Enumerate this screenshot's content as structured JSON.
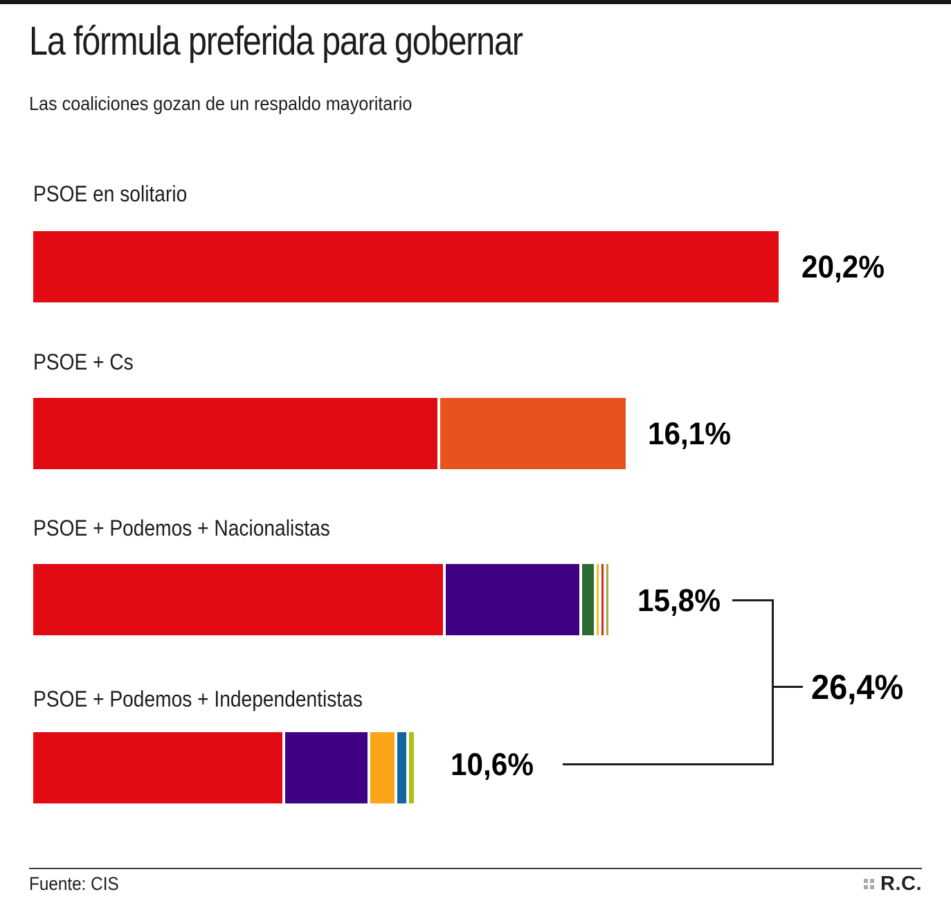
{
  "header": {
    "title": "La fórmula preferida para gobernar",
    "subtitle": "Las coaliciones gozan de un respaldo mayoritario"
  },
  "chart_data": {
    "type": "bar",
    "orientation": "horizontal",
    "unit": "%",
    "axis_max": 20.2,
    "grid": false,
    "legend": "none",
    "bars": [
      {
        "label": "PSOE en solitario",
        "total": 20.2,
        "total_label": "20,2%",
        "segments": [
          {
            "name": "PSOE",
            "value": 20.2,
            "color": "#e30b13"
          }
        ]
      },
      {
        "label": "PSOE + Cs",
        "total": 16.1,
        "total_label": "16,1%",
        "segments": [
          {
            "name": "PSOE",
            "value": 10.96,
            "color": "#e30b13"
          },
          {
            "name": "Cs",
            "value": 5.1,
            "color": "#e8521d"
          }
        ]
      },
      {
        "label": "PSOE + Podemos + Nacionalistas",
        "total": 15.8,
        "total_label": "15,8%",
        "segments": [
          {
            "name": "PSOE",
            "value": 11.1,
            "color": "#e30b13"
          },
          {
            "name": "Podemos",
            "value": 3.7,
            "color": "#400184"
          },
          {
            "name": "nacionalistas-verde",
            "value": 0.39,
            "color": "#2d6b34"
          },
          {
            "name": "nacionalistas-amarillo",
            "value": 0.13,
            "color": "#efc113"
          },
          {
            "name": "nacionalistas-rojo",
            "value": 0.06,
            "color": "#dc2427"
          },
          {
            "name": "nacionalistas-oliva",
            "value": 0.08,
            "color": "#a0ad3c"
          }
        ]
      },
      {
        "label": "PSOE + Podemos + Independentistas",
        "total": 10.6,
        "total_label": "10,6%",
        "segments": [
          {
            "name": "PSOE",
            "value": 6.75,
            "color": "#e30b13"
          },
          {
            "name": "Podemos",
            "value": 2.31,
            "color": "#400184"
          },
          {
            "name": "independentistas-ambar",
            "value": 0.73,
            "color": "#fba517"
          },
          {
            "name": "independentistas-azul",
            "value": 0.32,
            "color": "#13659e"
          },
          {
            "name": "independentistas-verde",
            "value": 0.21,
            "color": "#a9c313"
          }
        ]
      }
    ],
    "bracket": {
      "combined_label": "26,4%",
      "combines": [
        "15,8%",
        "10,6%"
      ]
    }
  },
  "footer": {
    "source": "Fuente: CIS",
    "credit": "R.C."
  }
}
